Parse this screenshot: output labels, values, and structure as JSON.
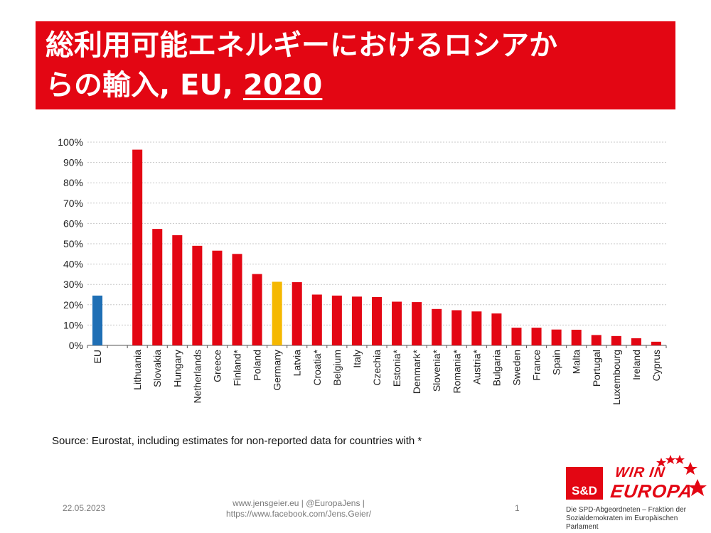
{
  "title": {
    "line1": "総利用可能エネルギーにおけるロシアか",
    "line2": "らの輸入, EU, ",
    "year": "2020"
  },
  "chart_data": {
    "type": "bar",
    "categories": [
      "EU",
      "",
      "Lithuania",
      "Slovakia",
      "Hungary",
      "Netherlands",
      "Greece",
      "Finland*",
      "Poland",
      "Germany",
      "Latvia",
      "Croatia*",
      "Belgium",
      "Italy",
      "Czechia",
      "Estonia*",
      "Denmark*",
      "Slovenia*",
      "Romania*",
      "Austria*",
      "Bulgaria",
      "Sweden",
      "France",
      "Spain",
      "Malta",
      "Portugal",
      "Luxembourg",
      "Ireland",
      "Cyprus"
    ],
    "values": [
      24.5,
      null,
      96.3,
      57.3,
      54.2,
      49.0,
      46.6,
      45.0,
      35.1,
      31.3,
      31.1,
      25.0,
      24.5,
      24.0,
      23.8,
      21.5,
      21.3,
      17.9,
      17.3,
      16.7,
      15.7,
      8.7,
      8.7,
      7.8,
      7.7,
      5.1,
      4.6,
      3.5,
      1.8
    ],
    "colors": [
      "#1f6fb5",
      null,
      "#e30613",
      "#e30613",
      "#e30613",
      "#e30613",
      "#e30613",
      "#e30613",
      "#e30613",
      "#f5b800",
      "#e30613",
      "#e30613",
      "#e30613",
      "#e30613",
      "#e30613",
      "#e30613",
      "#e30613",
      "#e30613",
      "#e30613",
      "#e30613",
      "#e30613",
      "#e30613",
      "#e30613",
      "#e30613",
      "#e30613",
      "#e30613",
      "#e30613",
      "#e30613",
      "#e30613"
    ],
    "yticks": [
      "0%",
      "10%",
      "20%",
      "30%",
      "40%",
      "50%",
      "60%",
      "70%",
      "80%",
      "90%",
      "100%"
    ],
    "ylim": [
      0,
      100
    ],
    "grid": true,
    "xlabel": "",
    "ylabel": ""
  },
  "source": "Source: Eurostat, including estimates for non-reported data for countries with *",
  "footer": {
    "date": "22.05.2023",
    "links_line1": "www.jensgeier.eu | @EuropaJens |",
    "links_line2": "https://www.facebook.com/Jens.Geier/",
    "page": "1"
  },
  "logo": {
    "sd": "S&D",
    "wir_line1": "WIR IN",
    "wir_line2": "EUROPA",
    "caption_line1": "Die SPD-Abgeordneten – Fraktion der",
    "caption_line2": "Sozialdemokraten im Europäischen Parlament"
  }
}
